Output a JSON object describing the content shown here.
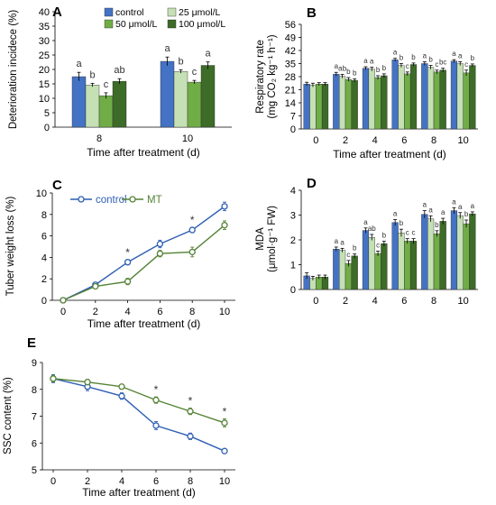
{
  "panels_text": {
    "A": {
      "letter": "A"
    },
    "B": {
      "letter": "B"
    },
    "C": {
      "letter": "C"
    },
    "D": {
      "letter": "D"
    },
    "E": {
      "letter": "E"
    }
  },
  "colors": {
    "control": "#4472c4",
    "c25": "#c5e0b4",
    "c50": "#70ad47",
    "c100": "#3d6b28",
    "mt_line": "#548235",
    "control_line": "#2f5fb3"
  },
  "chart_data": [
    {
      "id": "A",
      "type": "bar",
      "ylabel": "Deterioration incidece (%)",
      "xlabel": "Time after treatment (d)",
      "ylim": [
        0,
        40
      ],
      "yticks": [
        0,
        5,
        10,
        15,
        20,
        25,
        30,
        35,
        40
      ],
      "categories": [
        "8",
        "10"
      ],
      "legend": [
        "control",
        "25 μmol/L",
        "50 μmol/L",
        "100 μmol/L"
      ],
      "legend_position": "top-left",
      "series": [
        {
          "name": "control",
          "values": [
            17.5,
            22.8
          ],
          "errors": [
            1.5,
            1.5
          ],
          "letters": [
            "a",
            "a"
          ]
        },
        {
          "name": "25 μmol/L",
          "values": [
            14.6,
            19.3
          ],
          "errors": [
            0.6,
            0.6
          ],
          "letters": [
            "b",
            "b"
          ]
        },
        {
          "name": "50 μmol/L",
          "values": [
            10.9,
            15.6
          ],
          "errors": [
            1.0,
            0.6
          ],
          "letters": [
            "c",
            "c"
          ]
        },
        {
          "name": "100 μmol/L",
          "values": [
            15.9,
            21.4
          ],
          "errors": [
            0.9,
            1.2
          ],
          "letters": [
            "ab",
            "a"
          ]
        }
      ]
    },
    {
      "id": "B",
      "type": "bar",
      "ylabel": "Respiratory rate",
      "ylabel2": "(mg CO₂ kg⁻¹ h⁻¹)",
      "xlabel": "Time after treatment (d)",
      "ylim": [
        0,
        56
      ],
      "yticks": [
        0,
        7,
        14,
        21,
        28,
        35,
        42,
        49,
        56
      ],
      "categories": [
        "0",
        "2",
        "4",
        "6",
        "8",
        "10"
      ],
      "series": [
        {
          "name": "control",
          "values": [
            24,
            29.3,
            32.5,
            37,
            35,
            36.3
          ],
          "errors": [
            1,
            1,
            0.8,
            0.8,
            1,
            0.8
          ],
          "letters": [
            "",
            "a",
            "a",
            "a",
            "a",
            "a"
          ]
        },
        {
          "name": "25 μmol/L",
          "values": [
            23.5,
            28.2,
            32,
            34,
            33,
            35
          ],
          "errors": [
            1,
            1,
            1,
            1,
            1,
            1
          ],
          "letters": [
            "",
            "ab",
            "a",
            "b",
            "b",
            "a"
          ]
        },
        {
          "name": "50 μmol/L",
          "values": [
            24,
            26.5,
            27.5,
            29.5,
            30.5,
            30
          ],
          "errors": [
            0.8,
            1,
            1,
            1,
            1,
            1.5
          ],
          "letters": [
            "",
            "b",
            "b",
            "c",
            "c",
            "c"
          ]
        },
        {
          "name": "100 μmol/L",
          "values": [
            24,
            26,
            28.5,
            34.5,
            31.5,
            34
          ],
          "errors": [
            0.8,
            0.8,
            1,
            0.8,
            1,
            0.8
          ],
          "letters": [
            "",
            "b",
            "b",
            "b",
            "bc",
            "b"
          ]
        }
      ]
    },
    {
      "id": "C",
      "type": "line",
      "ylabel": "Tuber weight loss (%)",
      "xlabel": "Time after treatment (d)",
      "ylim": [
        0,
        10
      ],
      "yticks": [
        0,
        2,
        4,
        6,
        8,
        10
      ],
      "x": [
        0,
        2,
        4,
        6,
        8,
        10
      ],
      "legend": [
        "control",
        "MT"
      ],
      "legend_position": "top-left",
      "series": [
        {
          "name": "control",
          "values": [
            0,
            1.45,
            3.55,
            5.25,
            6.55,
            8.75
          ],
          "errors": [
            0,
            0.2,
            0.25,
            0.35,
            0.25,
            0.4
          ]
        },
        {
          "name": "MT",
          "values": [
            0,
            1.3,
            1.75,
            4.35,
            4.5,
            7.0
          ],
          "errors": [
            0,
            0.15,
            0.3,
            0.3,
            0.45,
            0.4
          ]
        }
      ],
      "stars": [
        4,
        8
      ]
    },
    {
      "id": "D",
      "type": "bar",
      "ylabel": "MDA",
      "ylabel2": "(μmol·g⁻¹ FW)",
      "xlabel": "",
      "ylim": [
        0,
        4
      ],
      "yticks": [
        0,
        1,
        2,
        3,
        4
      ],
      "categories": [
        "0",
        "2",
        "4",
        "6",
        "8",
        "10"
      ],
      "series": [
        {
          "name": "control",
          "values": [
            0.55,
            1.63,
            2.38,
            2.7,
            3.03,
            3.18
          ],
          "errors": [
            0.12,
            0.08,
            0.1,
            0.12,
            0.15,
            0.12
          ],
          "letters": [
            "",
            "a",
            "a",
            "a",
            "a",
            "a"
          ]
        },
        {
          "name": "25 μmol/L",
          "values": [
            0.45,
            1.58,
            2.1,
            2.28,
            2.85,
            2.98
          ],
          "errors": [
            0.08,
            0.08,
            0.12,
            0.15,
            0.12,
            0.12
          ],
          "letters": [
            "",
            "a",
            "ab",
            "b",
            "a",
            "a"
          ]
        },
        {
          "name": "50 μmol/L",
          "values": [
            0.5,
            1.05,
            1.45,
            1.95,
            2.25,
            2.65
          ],
          "errors": [
            0.08,
            0.12,
            0.1,
            0.1,
            0.12,
            0.15
          ],
          "letters": [
            "",
            "c",
            "c",
            "c",
            "b",
            "b"
          ]
        },
        {
          "name": "100 μmol/L",
          "values": [
            0.5,
            1.35,
            1.85,
            1.95,
            2.75,
            3.05
          ],
          "errors": [
            0.08,
            0.08,
            0.1,
            0.1,
            0.12,
            0.08
          ],
          "letters": [
            "",
            "b",
            "b",
            "c",
            "a",
            "a"
          ]
        }
      ]
    },
    {
      "id": "E",
      "type": "line",
      "ylabel": "SSC content (%)",
      "xlabel": "Time after treatment (d)",
      "ylim": [
        5,
        9
      ],
      "yticks": [
        5,
        6,
        7,
        8,
        9
      ],
      "x": [
        0,
        2,
        4,
        6,
        8,
        10
      ],
      "series": [
        {
          "name": "control",
          "values": [
            8.4,
            8.1,
            7.75,
            6.65,
            6.25,
            5.7
          ],
          "errors": [
            0.15,
            0.15,
            0.12,
            0.15,
            0.12,
            0.07
          ]
        },
        {
          "name": "MT",
          "values": [
            8.4,
            8.27,
            8.1,
            7.6,
            7.18,
            6.75
          ],
          "errors": [
            0.12,
            0.1,
            0.06,
            0.12,
            0.12,
            0.15
          ]
        }
      ],
      "stars": [
        6,
        8,
        10
      ]
    }
  ]
}
